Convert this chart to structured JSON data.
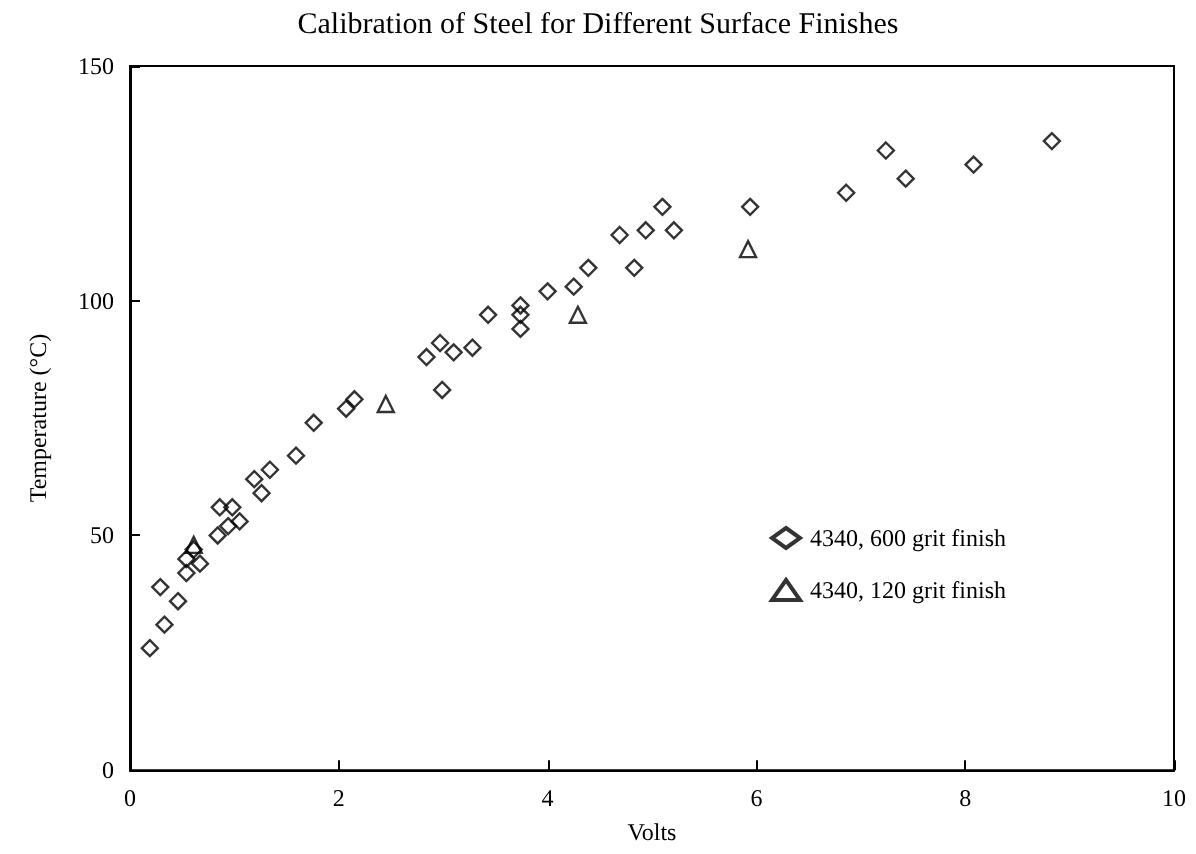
{
  "chart_data": {
    "type": "scatter",
    "title": "Calibration of Steel for Different Surface Finishes",
    "xlabel": "Volts",
    "ylabel": "Temperature (°C)",
    "xlim": [
      0,
      10
    ],
    "xticks": [
      0,
      2,
      4,
      6,
      8,
      10
    ],
    "ylim": [
      0,
      150
    ],
    "yticks": [
      0,
      50,
      100,
      150
    ],
    "grid": false,
    "legend": "right",
    "series": [
      {
        "name": "4340, 600 grit finish",
        "color": "#000000",
        "marker": "diamond",
        "x": [
          0.19,
          0.29,
          0.33,
          0.46,
          0.54,
          0.54,
          0.61,
          0.67,
          0.84,
          0.86,
          0.94,
          0.98,
          1.05,
          1.19,
          1.26,
          1.34,
          1.59,
          1.76,
          2.07,
          2.15,
          2.84,
          2.97,
          2.99,
          3.1,
          3.28,
          3.43,
          3.74,
          3.74,
          3.74,
          4.0,
          4.25,
          4.39,
          4.69,
          4.83,
          4.94,
          5.1,
          5.21,
          5.94,
          6.86,
          7.24,
          7.43,
          8.08,
          8.83
        ],
        "values": [
          26,
          39,
          31,
          36,
          42,
          45,
          47,
          44,
          50,
          56,
          52,
          56,
          53,
          62,
          59,
          64,
          67,
          74,
          77,
          79,
          88,
          91,
          81,
          89,
          90,
          97,
          99,
          97,
          94,
          102,
          103,
          107,
          114,
          107,
          115,
          120,
          115,
          120,
          123,
          132,
          126,
          129,
          134
        ]
      },
      {
        "name": "4340, 120 grit finish",
        "color": "#000000",
        "marker": "triangle",
        "x": [
          0.61,
          2.45,
          4.29,
          5.92
        ],
        "values": [
          48,
          78,
          97,
          111
        ]
      }
    ]
  }
}
